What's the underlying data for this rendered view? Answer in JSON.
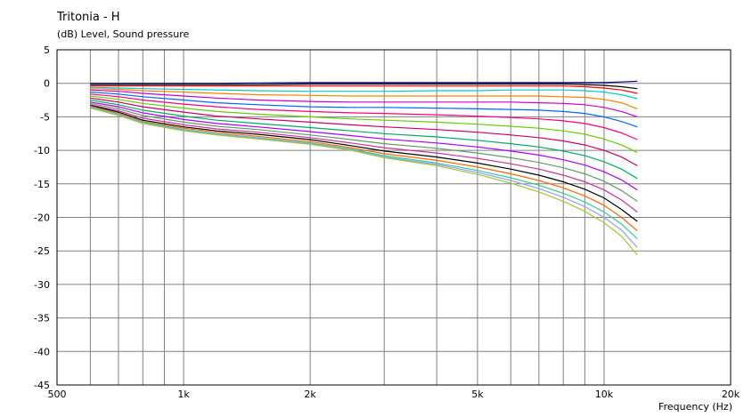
{
  "chart_data": {
    "type": "line",
    "title": "Tritonia - H",
    "subtitle": "(dB)  Level, Sound pressure",
    "xlabel": "Frequency  (Hz)",
    "ylabel": "(dB)  Level, Sound pressure",
    "x_scale": "log",
    "xlim": [
      500,
      20000
    ],
    "ylim": [
      -45,
      5
    ],
    "x_ticks": [
      {
        "value": 500,
        "label": "500"
      },
      {
        "value": 1000,
        "label": "1k"
      },
      {
        "value": 2000,
        "label": "2k"
      },
      {
        "value": 5000,
        "label": "5k"
      },
      {
        "value": 10000,
        "label": "10k"
      },
      {
        "value": 20000,
        "label": "20k"
      }
    ],
    "y_ticks": [
      5,
      0,
      -5,
      -10,
      -15,
      -20,
      -25,
      -30,
      -35,
      -40,
      -45
    ],
    "grid": true,
    "x": [
      600,
      700,
      800,
      1000,
      1200,
      1500,
      2000,
      2500,
      3000,
      4000,
      5000,
      6000,
      7000,
      8000,
      9000,
      10000,
      11000,
      12000
    ],
    "series": [
      {
        "color": "#000080",
        "values": [
          0,
          0,
          0,
          0,
          0,
          0.05,
          0.1,
          0.1,
          0.1,
          0.1,
          0.1,
          0.1,
          0.1,
          0.1,
          0.1,
          0.1,
          0.2,
          0.3
        ]
      },
      {
        "color": "#000000",
        "values": [
          -0.2,
          -0.2,
          -0.2,
          -0.2,
          -0.2,
          -0.2,
          -0.1,
          -0.1,
          -0.1,
          -0.1,
          -0.1,
          -0.1,
          -0.1,
          -0.1,
          -0.2,
          -0.3,
          -0.5,
          -0.8
        ]
      },
      {
        "color": "#ff0000",
        "values": [
          -0.4,
          -0.4,
          -0.4,
          -0.4,
          -0.4,
          -0.4,
          -0.4,
          -0.4,
          -0.4,
          -0.4,
          -0.4,
          -0.4,
          -0.4,
          -0.4,
          -0.5,
          -0.7,
          -1.0,
          -1.5
        ]
      },
      {
        "color": "#00cccc",
        "values": [
          -0.6,
          -0.7,
          -0.8,
          -0.9,
          -1.0,
          -1.1,
          -1.2,
          -1.2,
          -1.2,
          -1.1,
          -1.1,
          -1.0,
          -1.0,
          -1.0,
          -1.1,
          -1.3,
          -1.7,
          -2.3
        ]
      },
      {
        "color": "#ff8000",
        "values": [
          -0.8,
          -0.9,
          -1.1,
          -1.3,
          -1.5,
          -1.7,
          -1.8,
          -1.9,
          -1.9,
          -1.9,
          -1.9,
          -1.9,
          -1.9,
          -2.0,
          -2.1,
          -2.4,
          -2.9,
          -3.8
        ]
      },
      {
        "color": "#cc00cc",
        "values": [
          -1.0,
          -1.2,
          -1.5,
          -1.9,
          -2.2,
          -2.5,
          -2.7,
          -2.8,
          -2.8,
          -2.8,
          -2.8,
          -2.8,
          -2.9,
          -3.0,
          -3.2,
          -3.6,
          -4.2,
          -5.0
        ]
      },
      {
        "color": "#0066ff",
        "values": [
          -1.3,
          -1.6,
          -2.0,
          -2.5,
          -2.9,
          -3.2,
          -3.5,
          -3.6,
          -3.6,
          -3.7,
          -3.8,
          -3.9,
          -4.0,
          -4.2,
          -4.5,
          -5.0,
          -5.7,
          -6.5
        ]
      },
      {
        "color": "#ff0080",
        "values": [
          -1.6,
          -2.0,
          -2.5,
          -3.1,
          -3.5,
          -3.9,
          -4.2,
          -4.4,
          -4.5,
          -4.7,
          -4.9,
          -5.1,
          -5.3,
          -5.6,
          -6.0,
          -6.6,
          -7.4,
          -8.4
        ]
      },
      {
        "color": "#66cc00",
        "values": [
          -1.9,
          -2.4,
          -3.0,
          -3.7,
          -4.2,
          -4.6,
          -5.0,
          -5.3,
          -5.5,
          -5.8,
          -6.1,
          -6.4,
          -6.7,
          -7.1,
          -7.6,
          -8.3,
          -9.2,
          -10.3
        ]
      },
      {
        "color": "#cc0066",
        "values": [
          -2.2,
          -2.8,
          -3.5,
          -4.3,
          -4.9,
          -5.3,
          -5.8,
          -6.2,
          -6.5,
          -6.9,
          -7.3,
          -7.7,
          -8.1,
          -8.6,
          -9.2,
          -10.0,
          -11.0,
          -12.3
        ]
      },
      {
        "color": "#00aa66",
        "values": [
          -2.5,
          -3.2,
          -4.0,
          -4.9,
          -5.5,
          -6.0,
          -6.6,
          -7.1,
          -7.5,
          -8.0,
          -8.5,
          -9.0,
          -9.5,
          -10.1,
          -10.8,
          -11.7,
          -12.8,
          -14.2
        ]
      },
      {
        "color": "#aa00ff",
        "values": [
          -2.8,
          -3.5,
          -4.4,
          -5.4,
          -6.0,
          -6.5,
          -7.2,
          -7.8,
          -8.3,
          -8.9,
          -9.5,
          -10.1,
          -10.7,
          -11.4,
          -12.2,
          -13.2,
          -14.4,
          -15.9
        ]
      },
      {
        "color": "#669966",
        "values": [
          -3.0,
          -3.8,
          -4.8,
          -5.8,
          -6.4,
          -6.9,
          -7.7,
          -8.4,
          -9.0,
          -9.7,
          -10.4,
          -11.1,
          -11.8,
          -12.6,
          -13.5,
          -14.6,
          -16.0,
          -17.6
        ]
      },
      {
        "color": "#cc3399",
        "values": [
          -3.2,
          -4.1,
          -5.2,
          -6.2,
          -6.8,
          -7.3,
          -8.1,
          -8.9,
          -9.6,
          -10.4,
          -11.2,
          -12.0,
          -12.8,
          -13.7,
          -14.7,
          -15.9,
          -17.4,
          -19.2
        ]
      },
      {
        "color": "#000000",
        "values": [
          -3.3,
          -4.3,
          -5.5,
          -6.5,
          -7.1,
          -7.6,
          -8.4,
          -9.3,
          -10.1,
          -11.0,
          -11.9,
          -12.8,
          -13.7,
          -14.7,
          -15.8,
          -17.1,
          -18.8,
          -20.6
        ]
      },
      {
        "color": "#ff6600",
        "values": [
          -3.4,
          -4.5,
          -5.7,
          -6.7,
          -7.3,
          -7.9,
          -8.7,
          -9.6,
          -10.5,
          -11.5,
          -12.5,
          -13.5,
          -14.5,
          -15.6,
          -16.8,
          -18.2,
          -20.0,
          -22.0
        ]
      },
      {
        "color": "#33cc99",
        "values": [
          -3.5,
          -4.6,
          -5.8,
          -6.9,
          -7.5,
          -8.1,
          -8.9,
          -9.8,
          -10.8,
          -11.9,
          -13.0,
          -14.1,
          -15.2,
          -16.4,
          -17.7,
          -19.2,
          -21.0,
          -23.2
        ]
      },
      {
        "color": "#9999ff",
        "values": [
          -3.6,
          -4.7,
          -5.9,
          -7.0,
          -7.6,
          -8.2,
          -9.0,
          -9.9,
          -11.0,
          -12.1,
          -13.3,
          -14.5,
          -15.7,
          -17.0,
          -18.4,
          -20.0,
          -21.9,
          -24.5
        ]
      },
      {
        "color": "#99cc33",
        "values": [
          -3.7,
          -4.8,
          -6.0,
          -7.1,
          -7.7,
          -8.3,
          -9.1,
          -10.0,
          -11.1,
          -12.3,
          -13.6,
          -14.9,
          -16.2,
          -17.6,
          -19.1,
          -20.8,
          -22.8,
          -25.6
        ]
      }
    ]
  }
}
